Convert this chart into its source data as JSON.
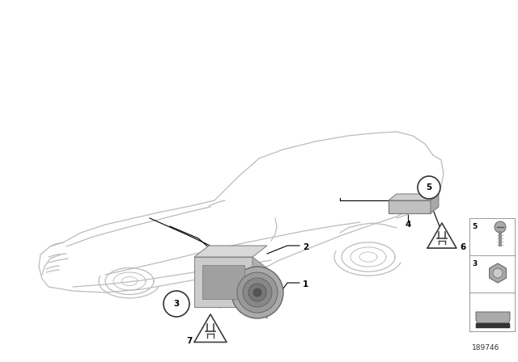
{
  "background_color": "#ffffff",
  "diagram_id": "189746",
  "car_color": "#bbbbbb",
  "car_lw": 0.9,
  "part_color": "#b8b8b8",
  "dark_part_color": "#888888",
  "line_color": "#000000",
  "text_color": "#000000",
  "label_fontsize": 7.5,
  "small_fontsize": 6.5
}
